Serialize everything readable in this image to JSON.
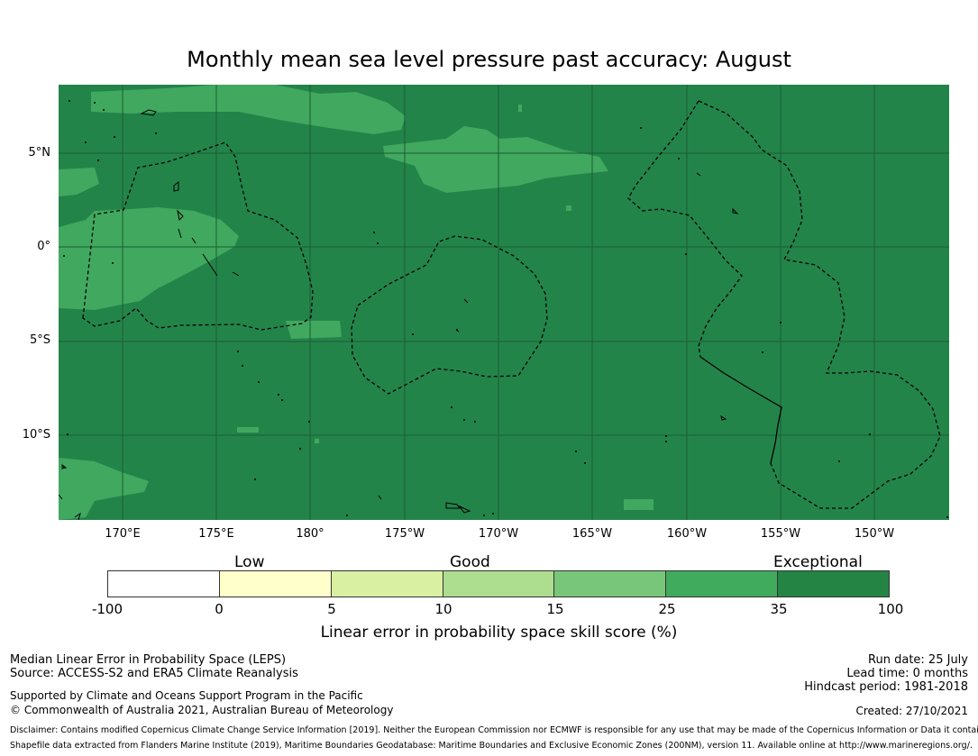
{
  "title": "Monthly mean sea level pressure past accuracy: August",
  "map": {
    "lat_labels": [
      "5°N",
      "0°",
      "5°S",
      "10°S"
    ],
    "lon_labels": [
      "170°E",
      "175°E",
      "180°",
      "175°W",
      "170°W",
      "165°W",
      "160°W",
      "155°W",
      "150°W"
    ],
    "colors": {
      "exceptional": "#23844a",
      "25_35": "#41a85f",
      "coast": "#000000",
      "grid": "#1b5e32"
    }
  },
  "categories": {
    "low": "Low",
    "good": "Good",
    "exceptional": "Exceptional"
  },
  "colorbar": {
    "ticks": [
      "-100",
      "0",
      "5",
      "10",
      "15",
      "25",
      "35",
      "100"
    ],
    "colors": [
      "#ffffff",
      "#ffffcc",
      "#d9f0a3",
      "#addd8e",
      "#78c679",
      "#41ab5d",
      "#238443"
    ],
    "label": "Linear error in probability space skill score (%)"
  },
  "footer": {
    "method": "Median Linear Error in Probability Space (LEPS)",
    "source": "Source: ACCESS-S2 and ERA5 Climate Reanalysis",
    "supported": "Supported by Climate and Oceans Support Program in the Pacific",
    "copyright": "© Commonwealth of Australia 2021, Australian Bureau of Meteorology",
    "run_date": "Run date: 25 July",
    "lead_time": "Lead time: 0 months",
    "hindcast": "Hindcast period: 1981-2018",
    "created": "Created: 27/10/2021",
    "disclaimer": "Disclaimer: Contains modified Copernicus Climate Change Service Information [2019]. Neither the European Commission nor ECMWF is responsible for any use that may be made of the Copernicus Information or Data it contains.",
    "shapefile": "Shapefile data extracted from Flanders Marine Institute (2019), Maritime Boundaries Geodatabase: Maritime Boundaries and Exclusive Economic Zones (200NM), version 11. Available online at http://www.marineregions.org/."
  }
}
